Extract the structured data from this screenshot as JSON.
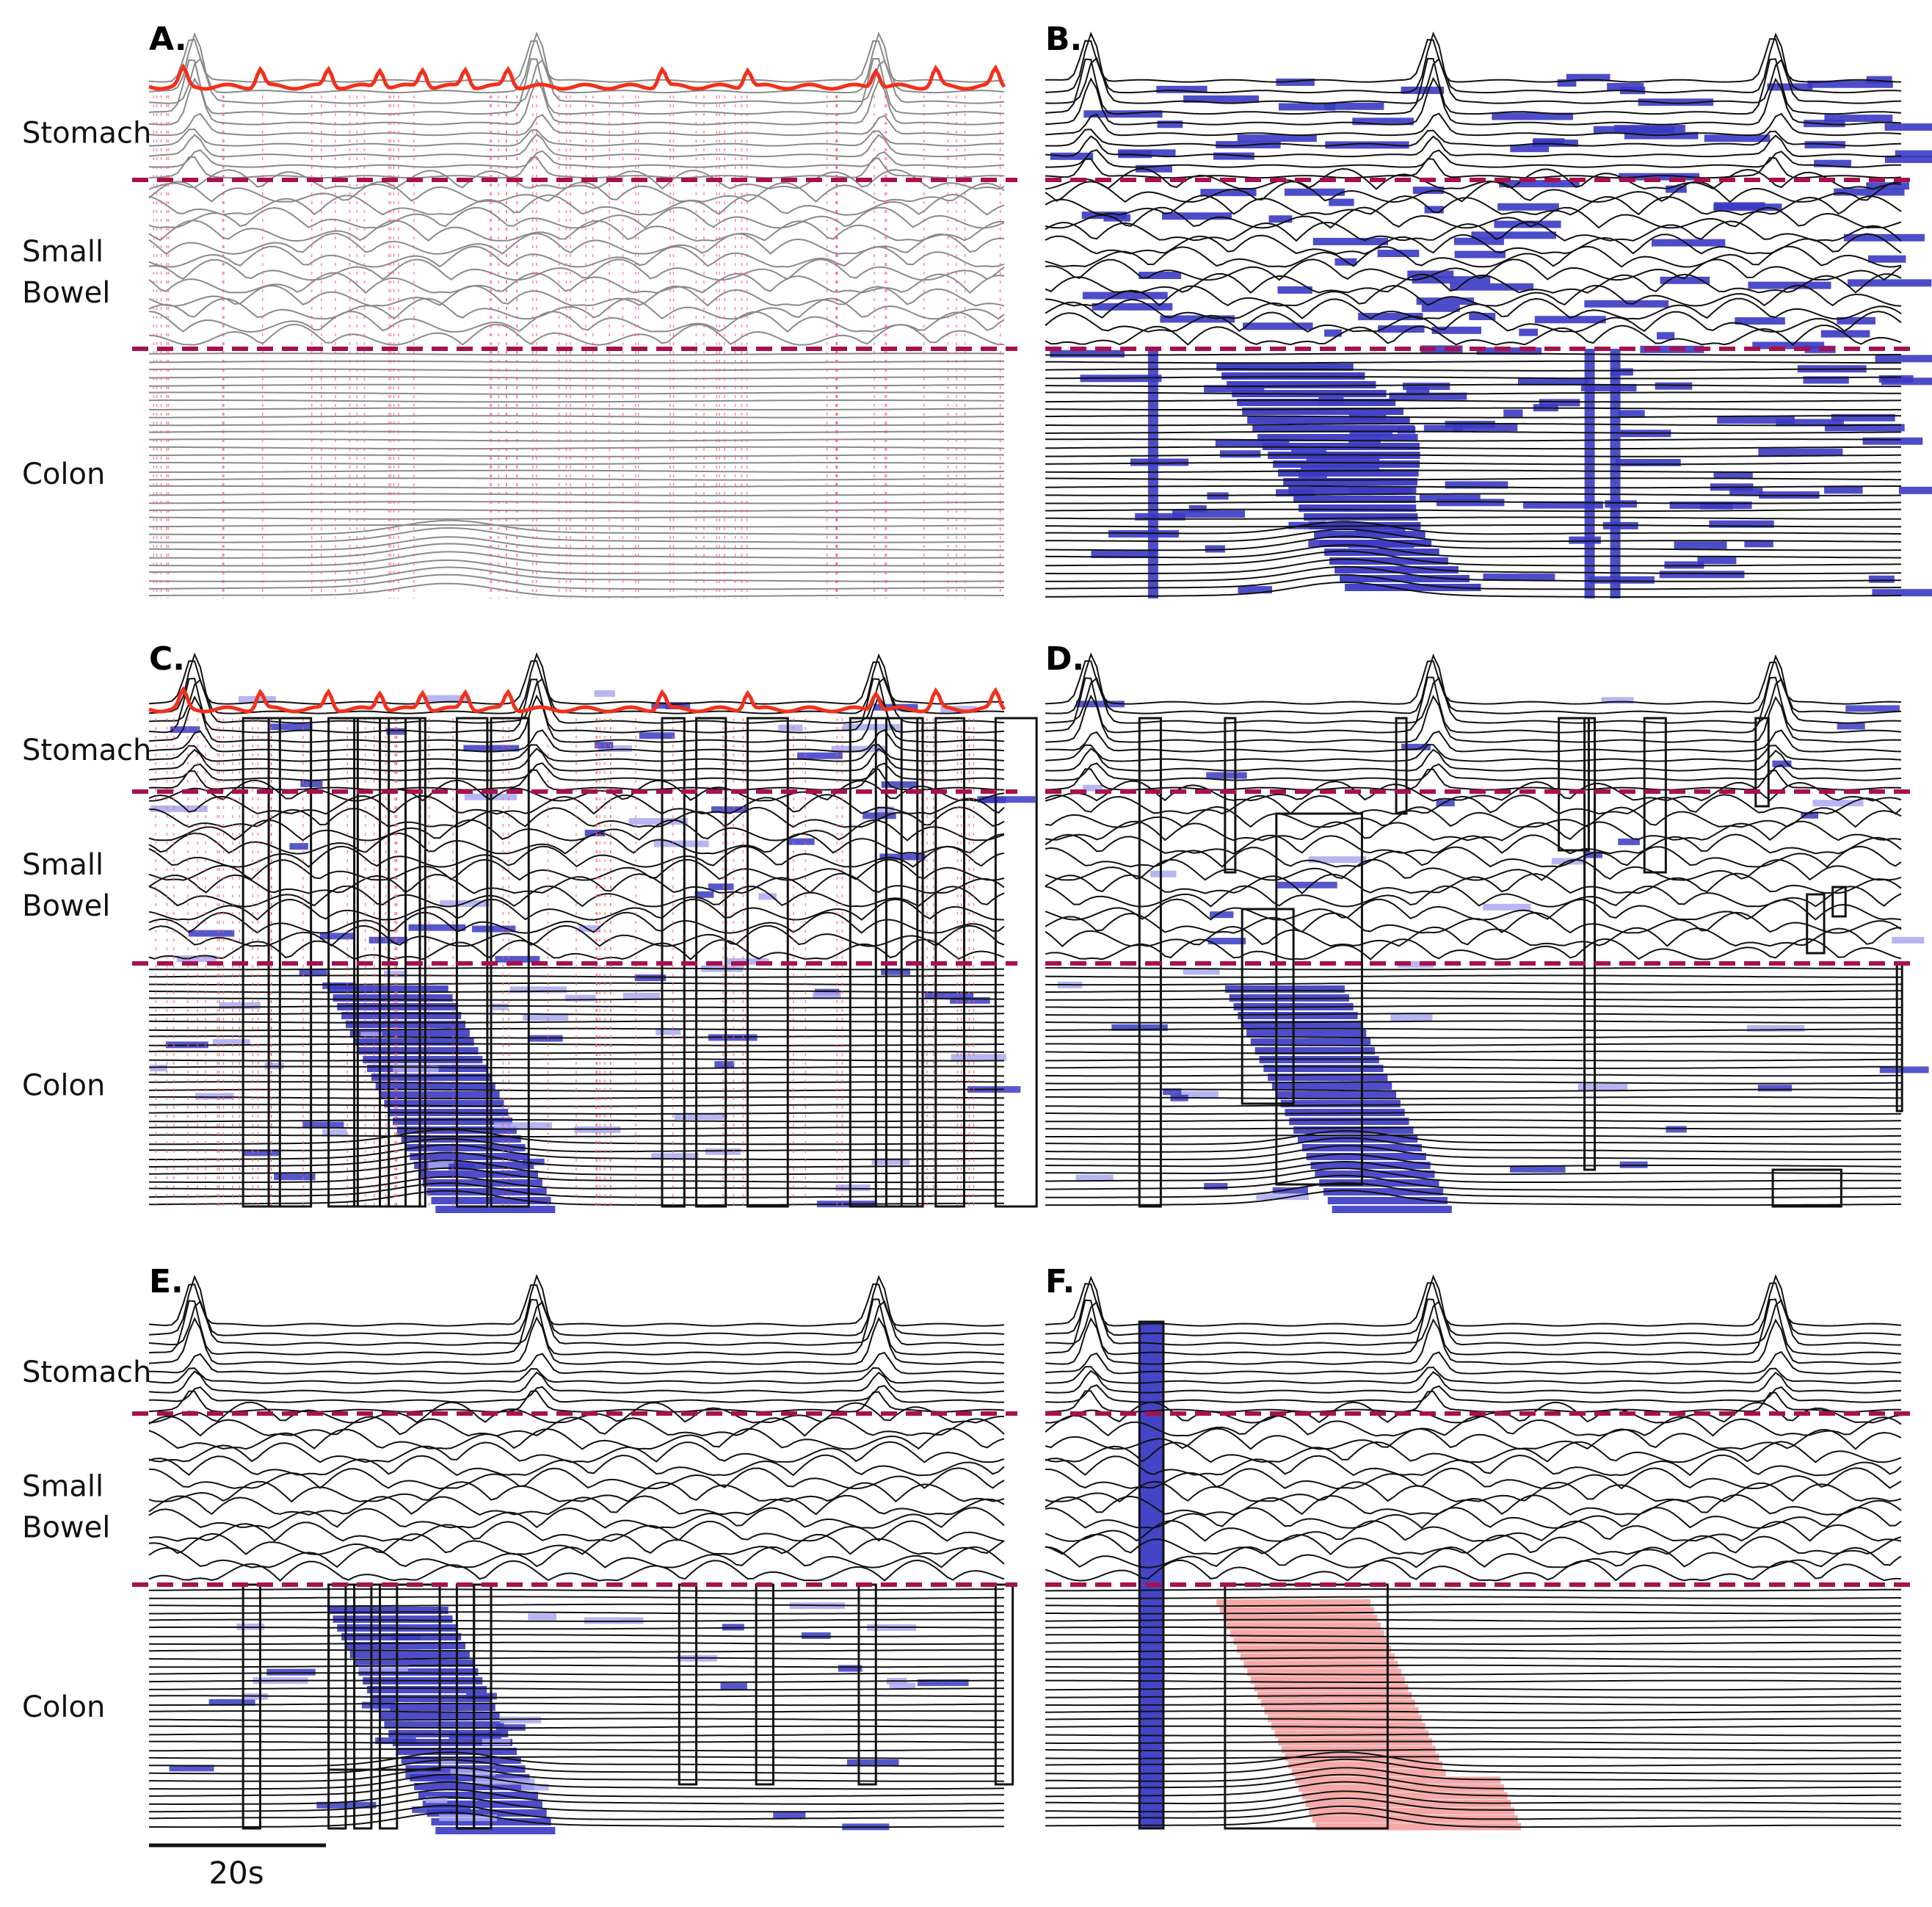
{
  "panels": [
    {
      "id": "A",
      "label": "A.",
      "style": "gray-red"
    },
    {
      "id": "B",
      "label": "B.",
      "style": "blue-fill"
    },
    {
      "id": "C",
      "label": "C.",
      "style": "boxes-all"
    },
    {
      "id": "D",
      "label": "D.",
      "style": "boxes-sparse"
    },
    {
      "id": "E",
      "label": "E.",
      "style": "boxes-colon"
    },
    {
      "id": "F",
      "label": "F.",
      "style": "pink-region"
    }
  ],
  "regions": [
    {
      "key": "stomach",
      "lines": [
        "Stomach"
      ]
    },
    {
      "key": "small_bowel",
      "lines": [
        "Small",
        "Bowel"
      ]
    },
    {
      "key": "colon",
      "lines": [
        "Colon"
      ]
    }
  ],
  "scale_bar": {
    "label": "20s"
  },
  "colors": {
    "divider": "#a8104e",
    "trace": "#111111",
    "trace_gray": "#8a8a8a",
    "summary_trace": "#f2301c",
    "event_fill": "#3a3ac4",
    "event_fill_light": "#a9a9f0",
    "peak_marker": "#ff5a6a",
    "f_region": "#f4a0a0"
  }
}
